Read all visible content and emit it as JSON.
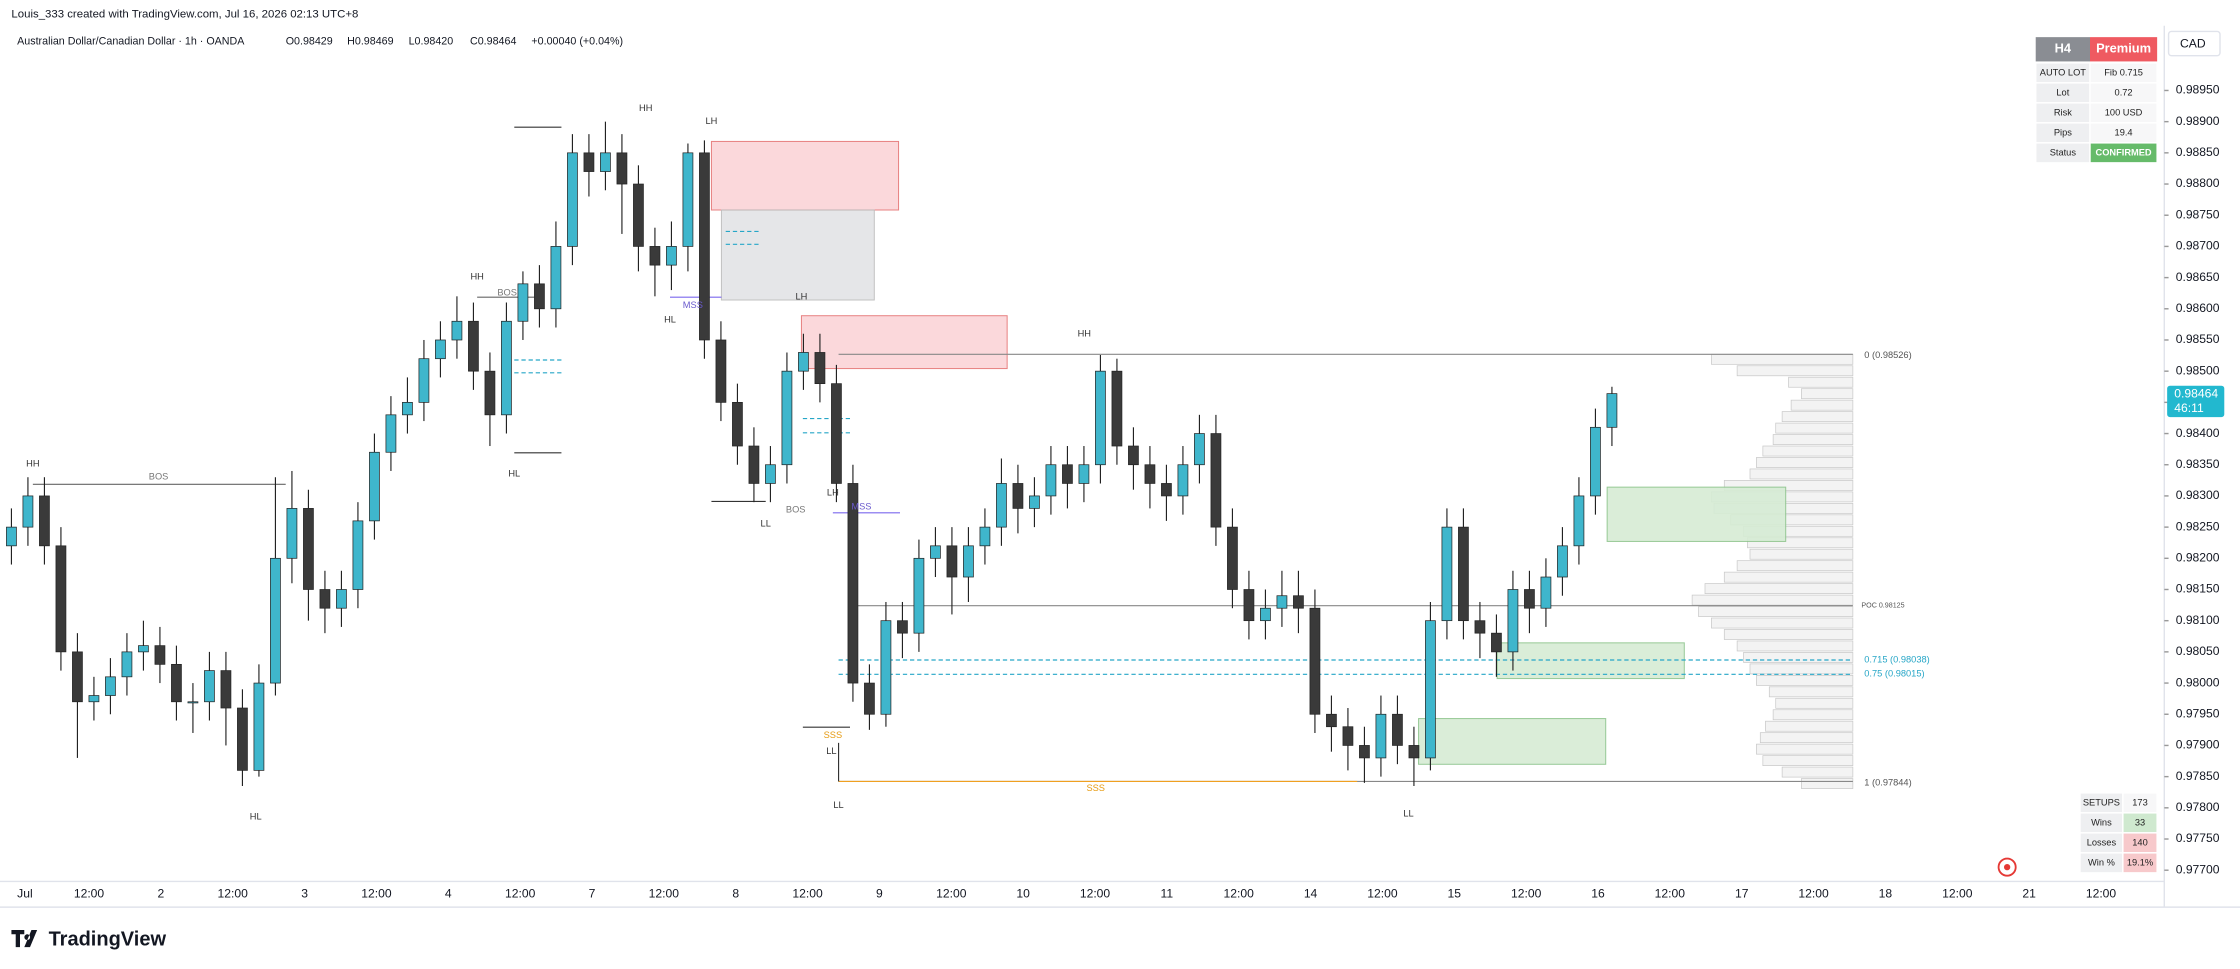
{
  "header": {
    "attribution": "Louis_333 created with TradingView.com, Jul 16, 2026 02:13 UTC+8",
    "symbol": "Australian Dollar/Canadian Dollar · 1h · OANDA",
    "quote": [
      "O0.98429",
      "H0.98469",
      "L0.98420",
      "C0.98464",
      "+0.00040 (+0.04%)"
    ]
  },
  "chart_data": {
    "type": "candlestick",
    "currency": "CAD",
    "ylim": [
      0.97682,
      0.99008
    ],
    "yticks": [
      {
        "value": 0.977,
        "label": "0.97700"
      },
      {
        "value": 0.9775,
        "label": "0.97750"
      },
      {
        "value": 0.978,
        "label": "0.97800"
      },
      {
        "value": 0.9785,
        "label": "0.97850"
      },
      {
        "value": 0.979,
        "label": "0.97900"
      },
      {
        "value": 0.9795,
        "label": "0.97950"
      },
      {
        "value": 0.98,
        "label": "0.98000"
      },
      {
        "value": 0.9805,
        "label": "0.98050"
      },
      {
        "value": 0.981,
        "label": "0.98100"
      },
      {
        "value": 0.9815,
        "label": "0.98150"
      },
      {
        "value": 0.982,
        "label": "0.98200"
      },
      {
        "value": 0.9825,
        "label": "0.98250"
      },
      {
        "value": 0.983,
        "label": "0.98300"
      },
      {
        "value": 0.9835,
        "label": "0.98350"
      },
      {
        "value": 0.984,
        "label": "0.98400"
      },
      {
        "value": 0.9845,
        "label": "0.98450"
      },
      {
        "value": 0.985,
        "label": "0.98500"
      },
      {
        "value": 0.9855,
        "label": "0.98550"
      },
      {
        "value": 0.986,
        "label": "0.98600"
      },
      {
        "value": 0.9865,
        "label": "0.98650"
      },
      {
        "value": 0.987,
        "label": "0.98700"
      },
      {
        "value": 0.9875,
        "label": "0.98750"
      },
      {
        "value": 0.988,
        "label": "0.98800"
      },
      {
        "value": 0.9885,
        "label": "0.98850"
      },
      {
        "value": 0.989,
        "label": "0.98900"
      },
      {
        "value": 0.9895,
        "label": "0.98950"
      }
    ],
    "x_labels": [
      "Jul",
      "12:00",
      "2",
      "12:00",
      "3",
      "12:00",
      "4",
      "12:00",
      "7",
      "12:00",
      "8",
      "12:00",
      "9",
      "12:00",
      "10",
      "12:00",
      "11",
      "12:00",
      "14",
      "12:00",
      "15",
      "12:00",
      "16",
      "12:00",
      "17",
      "12:00",
      "18",
      "12:00",
      "21",
      "12:00"
    ],
    "up_color": "#3fb6cc",
    "down_color": "#3a3a3a",
    "ohlc": [
      [
        0.9822,
        0.9828,
        0.9819,
        0.9825
      ],
      [
        0.9825,
        0.9833,
        0.9822,
        0.983
      ],
      [
        0.983,
        0.9833,
        0.9819,
        0.9822
      ],
      [
        0.9822,
        0.9825,
        0.9802,
        0.9805
      ],
      [
        0.9805,
        0.9808,
        0.9788,
        0.9797
      ],
      [
        0.9797,
        0.9801,
        0.9794,
        0.9798
      ],
      [
        0.9798,
        0.9804,
        0.9795,
        0.9801
      ],
      [
        0.9801,
        0.9808,
        0.9798,
        0.9805
      ],
      [
        0.9805,
        0.981,
        0.9802,
        0.9806
      ],
      [
        0.9806,
        0.9809,
        0.98,
        0.9803
      ],
      [
        0.9803,
        0.9806,
        0.9794,
        0.9797
      ],
      [
        0.9797,
        0.98,
        0.9792,
        0.9797
      ],
      [
        0.9797,
        0.9805,
        0.9794,
        0.9802
      ],
      [
        0.9802,
        0.9805,
        0.979,
        0.9796
      ],
      [
        0.9796,
        0.9799,
        0.97835,
        0.9786
      ],
      [
        0.9786,
        0.9803,
        0.9785,
        0.98
      ],
      [
        0.98,
        0.9833,
        0.9798,
        0.982
      ],
      [
        0.982,
        0.9834,
        0.9816,
        0.9828
      ],
      [
        0.9828,
        0.9831,
        0.981,
        0.9815
      ],
      [
        0.9815,
        0.9818,
        0.9808,
        0.9812
      ],
      [
        0.9812,
        0.9818,
        0.9809,
        0.9815
      ],
      [
        0.9815,
        0.9829,
        0.9812,
        0.9826
      ],
      [
        0.9826,
        0.984,
        0.9823,
        0.9837
      ],
      [
        0.9837,
        0.9846,
        0.9834,
        0.9843
      ],
      [
        0.9843,
        0.9849,
        0.984,
        0.9845
      ],
      [
        0.9845,
        0.9855,
        0.9842,
        0.9852
      ],
      [
        0.9852,
        0.9858,
        0.9849,
        0.9855
      ],
      [
        0.9855,
        0.9862,
        0.9852,
        0.9858
      ],
      [
        0.9858,
        0.9861,
        0.9847,
        0.985
      ],
      [
        0.985,
        0.9853,
        0.9838,
        0.9843
      ],
      [
        0.9843,
        0.9861,
        0.984,
        0.9858
      ],
      [
        0.9858,
        0.9866,
        0.9855,
        0.9864
      ],
      [
        0.9864,
        0.9867,
        0.9857,
        0.986
      ],
      [
        0.986,
        0.9874,
        0.9857,
        0.987
      ],
      [
        0.987,
        0.9888,
        0.9867,
        0.9885
      ],
      [
        0.9885,
        0.9888,
        0.9878,
        0.9882
      ],
      [
        0.9882,
        0.989,
        0.9879,
        0.9885
      ],
      [
        0.9885,
        0.9888,
        0.9872,
        0.988
      ],
      [
        0.988,
        0.9883,
        0.9866,
        0.987
      ],
      [
        0.987,
        0.9873,
        0.9862,
        0.9867
      ],
      [
        0.9867,
        0.9874,
        0.9863,
        0.987
      ],
      [
        0.987,
        0.98865,
        0.9866,
        0.9885
      ],
      [
        0.9885,
        0.9887,
        0.9852,
        0.9855
      ],
      [
        0.9855,
        0.9858,
        0.9842,
        0.9845
      ],
      [
        0.9845,
        0.9848,
        0.9835,
        0.9838
      ],
      [
        0.9838,
        0.9841,
        0.9829,
        0.9832
      ],
      [
        0.9832,
        0.9838,
        0.9829,
        0.9835
      ],
      [
        0.9835,
        0.9853,
        0.9832,
        0.985
      ],
      [
        0.985,
        0.9856,
        0.9847,
        0.9853
      ],
      [
        0.9853,
        0.9856,
        0.9845,
        0.9848
      ],
      [
        0.9848,
        0.9851,
        0.9829,
        0.9832
      ],
      [
        0.9832,
        0.9835,
        0.9797,
        0.98
      ],
      [
        0.98,
        0.9803,
        0.97925,
        0.9795
      ],
      [
        0.9795,
        0.9813,
        0.9793,
        0.981
      ],
      [
        0.981,
        0.9813,
        0.9804,
        0.9808
      ],
      [
        0.9808,
        0.9823,
        0.9805,
        0.982
      ],
      [
        0.982,
        0.9825,
        0.9817,
        0.9822
      ],
      [
        0.9822,
        0.9825,
        0.9811,
        0.9817
      ],
      [
        0.9817,
        0.9825,
        0.9813,
        0.9822
      ],
      [
        0.9822,
        0.9828,
        0.9819,
        0.9825
      ],
      [
        0.9825,
        0.9836,
        0.9822,
        0.9832
      ],
      [
        0.9832,
        0.9835,
        0.9824,
        0.9828
      ],
      [
        0.9828,
        0.9833,
        0.9825,
        0.983
      ],
      [
        0.983,
        0.9838,
        0.9827,
        0.9835
      ],
      [
        0.9835,
        0.9838,
        0.9828,
        0.9832
      ],
      [
        0.9832,
        0.9838,
        0.9829,
        0.9835
      ],
      [
        0.9835,
        0.98526,
        0.9832,
        0.985
      ],
      [
        0.985,
        0.9852,
        0.9835,
        0.9838
      ],
      [
        0.9838,
        0.9841,
        0.9831,
        0.9835
      ],
      [
        0.9835,
        0.9838,
        0.9828,
        0.9832
      ],
      [
        0.9832,
        0.9835,
        0.9826,
        0.983
      ],
      [
        0.983,
        0.9838,
        0.9827,
        0.9835
      ],
      [
        0.9835,
        0.9843,
        0.9832,
        0.984
      ],
      [
        0.984,
        0.9843,
        0.9822,
        0.9825
      ],
      [
        0.9825,
        0.9828,
        0.9812,
        0.9815
      ],
      [
        0.9815,
        0.9818,
        0.9807,
        0.981
      ],
      [
        0.981,
        0.9815,
        0.9807,
        0.9812
      ],
      [
        0.9812,
        0.9818,
        0.9809,
        0.9814
      ],
      [
        0.9814,
        0.9818,
        0.9808,
        0.9812
      ],
      [
        0.9812,
        0.9815,
        0.9792,
        0.9795
      ],
      [
        0.9795,
        0.9798,
        0.9789,
        0.9793
      ],
      [
        0.9793,
        0.9796,
        0.9786,
        0.979
      ],
      [
        0.979,
        0.9793,
        0.9784,
        0.9788
      ],
      [
        0.9788,
        0.9798,
        0.9785,
        0.9795
      ],
      [
        0.9795,
        0.9798,
        0.9787,
        0.979
      ],
      [
        0.979,
        0.9793,
        0.97835,
        0.9788
      ],
      [
        0.9788,
        0.9813,
        0.9786,
        0.981
      ],
      [
        0.981,
        0.9828,
        0.9807,
        0.9825
      ],
      [
        0.9825,
        0.9828,
        0.9807,
        0.981
      ],
      [
        0.981,
        0.9813,
        0.9804,
        0.9808
      ],
      [
        0.9808,
        0.9811,
        0.9801,
        0.9805
      ],
      [
        0.9805,
        0.9818,
        0.9802,
        0.9815
      ],
      [
        0.9815,
        0.9818,
        0.9808,
        0.9812
      ],
      [
        0.9812,
        0.982,
        0.9809,
        0.9817
      ],
      [
        0.9817,
        0.9825,
        0.9814,
        0.9822
      ],
      [
        0.9822,
        0.9833,
        0.9819,
        0.983
      ],
      [
        0.983,
        0.9844,
        0.9827,
        0.9841
      ],
      [
        0.9841,
        0.98475,
        0.9838,
        0.98464
      ]
    ],
    "last_price": {
      "label": "0.98464",
      "countdown": "46:11"
    },
    "volume_profile": [
      110,
      90,
      50,
      40,
      48,
      55,
      60,
      62,
      70,
      75,
      80,
      100,
      110,
      108,
      95,
      85,
      82,
      80,
      90,
      100,
      115,
      125,
      120,
      110,
      100,
      90,
      85,
      80,
      75,
      65,
      60,
      62,
      68,
      72,
      75,
      70,
      55,
      40
    ],
    "annotations": [
      "HH",
      "BOS",
      "HL",
      "HH",
      "BOS",
      "HL",
      "HH",
      "LH",
      "HL",
      "MSS",
      "LH",
      "LL",
      "BOS",
      "LH",
      "MSS",
      "SSS",
      "LL",
      "HH",
      "SSS",
      "LL",
      "LL"
    ],
    "levels": [
      "0 (0.98526)",
      "POC 0.98125",
      "0.715 (0.98038)",
      "0.75 (0.98015)",
      "1 (0.97844)"
    ]
  },
  "info_panel": {
    "timeframe": "H4",
    "tier": "Premium",
    "rows": [
      [
        "AUTO LOT",
        "Fib 0.715"
      ],
      [
        "Lot",
        "0.72"
      ],
      [
        "Risk",
        "100 USD"
      ],
      [
        "Pips",
        "19.4"
      ],
      [
        "Status",
        "CONFIRMED"
      ]
    ]
  },
  "stats_panel": {
    "rows": [
      [
        "SETUPS",
        "173"
      ],
      [
        "Wins",
        "33"
      ],
      [
        "Losses",
        "140"
      ],
      [
        "Win %",
        "19.1%"
      ]
    ]
  },
  "logo": "TradingView"
}
